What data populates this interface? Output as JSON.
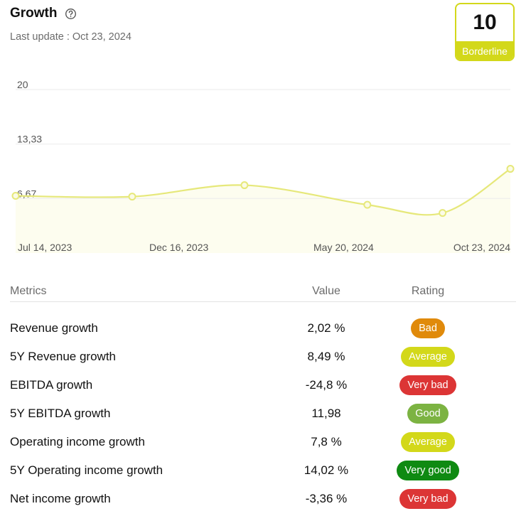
{
  "header": {
    "title": "Growth",
    "help_icon": "question-circle-icon",
    "last_update": "Last update : Oct 23, 2024"
  },
  "score": {
    "value": "10",
    "label": "Borderline",
    "color": "#d3d81a"
  },
  "chart_data": {
    "type": "line",
    "y_ticks": [
      "20",
      "13,33",
      "6,67"
    ],
    "x_tick_labels": [
      "Jul 14, 2023",
      "Dec 16, 2023",
      "May 20, 2024",
      "Oct 23, 2024"
    ],
    "ylim": [
      0,
      20
    ],
    "grid": true,
    "line_color": "#e6e87a",
    "fill_color": "#fdfdef",
    "x": [
      "2023-07-14",
      "2023-11-01",
      "2024-02-15",
      "2024-06-10",
      "2024-08-20",
      "2024-10-23"
    ],
    "values": [
      7,
      6.9,
      8.3,
      5.9,
      4.9,
      10.3
    ]
  },
  "table": {
    "headers": {
      "metric": "Metrics",
      "value": "Value",
      "rating": "Rating"
    },
    "rows": [
      {
        "metric": "Revenue growth",
        "value": "2,02 %",
        "rating": "Bad",
        "color": "#e08a0b"
      },
      {
        "metric": "5Y Revenue growth",
        "value": "8,49 %",
        "rating": "Average",
        "color": "#d3d81a"
      },
      {
        "metric": "EBITDA growth",
        "value": "-24,8 %",
        "rating": "Very bad",
        "color": "#dc3535"
      },
      {
        "metric": "5Y EBITDA growth",
        "value": "11,98",
        "rating": "Good",
        "color": "#7cb342"
      },
      {
        "metric": "Operating income growth",
        "value": "7,8 %",
        "rating": "Average",
        "color": "#d3d81a"
      },
      {
        "metric": "5Y Operating income growth",
        "value": "14,02 %",
        "rating": "Very good",
        "color": "#0f8a12"
      },
      {
        "metric": "Net income growth",
        "value": "-3,36 %",
        "rating": "Very bad",
        "color": "#dc3535"
      }
    ]
  }
}
